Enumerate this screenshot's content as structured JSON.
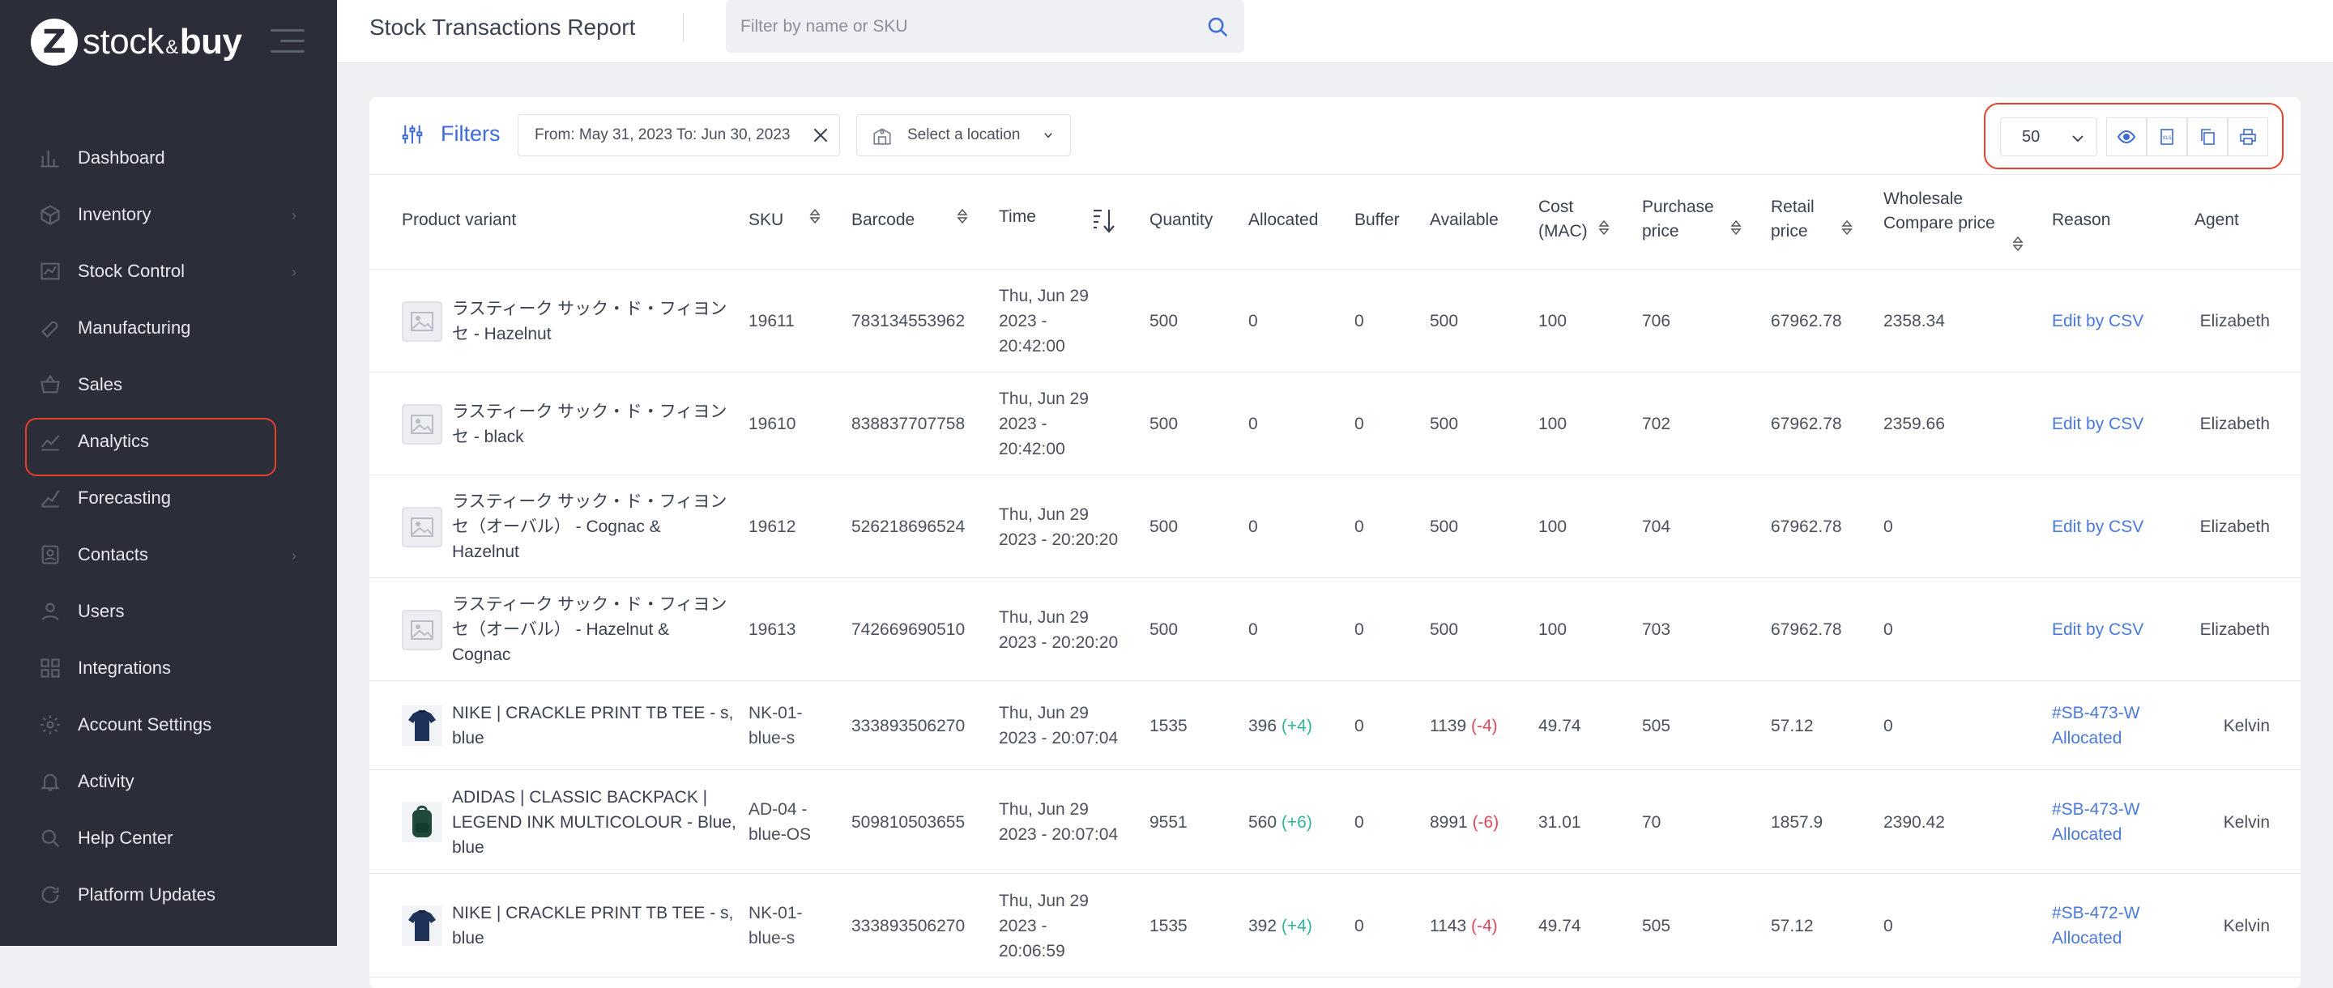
{
  "brand": {
    "mark": "Z",
    "name_left": "stock",
    "name_amp": "&",
    "name_right": "buy"
  },
  "nav": [
    {
      "label": "Dashboard",
      "icon": "bar-chart-icon",
      "chevron": false
    },
    {
      "label": "Inventory",
      "icon": "box-icon",
      "chevron": true
    },
    {
      "label": "Stock Control",
      "icon": "stock-control-icon",
      "chevron": true
    },
    {
      "label": "Manufacturing",
      "icon": "tools-icon",
      "chevron": false
    },
    {
      "label": "Sales",
      "icon": "basket-icon",
      "chevron": false
    },
    {
      "label": "Analytics",
      "icon": "analytics-icon",
      "chevron": false
    },
    {
      "label": "Forecasting",
      "icon": "forecast-icon",
      "chevron": false
    },
    {
      "label": "Contacts",
      "icon": "contacts-icon",
      "chevron": true
    },
    {
      "label": "Users",
      "icon": "users-icon",
      "chevron": false
    },
    {
      "label": "Integrations",
      "icon": "integrations-icon",
      "chevron": false
    },
    {
      "label": "Account Settings",
      "icon": "gear-icon",
      "chevron": false
    },
    {
      "label": "Activity",
      "icon": "bell-icon",
      "chevron": false
    },
    {
      "label": "Help Center",
      "icon": "search-icon",
      "chevron": false
    },
    {
      "label": "Platform Updates",
      "icon": "refresh-icon",
      "chevron": false
    }
  ],
  "header": {
    "title": "Stock Transactions Report",
    "search_placeholder": "Filter by name or SKU"
  },
  "filters": {
    "label": "Filters",
    "date_range": "From: May 31, 2023 To: Jun 30, 2023",
    "location_placeholder": "Select a location",
    "per_page": "50"
  },
  "columns": {
    "product": "Product variant",
    "sku": "SKU",
    "barcode": "Barcode",
    "time": "Time",
    "quantity": "Quantity",
    "allocated": "Allocated",
    "buffer": "Buffer",
    "available": "Available",
    "cost_1": "Cost",
    "cost_2": "(MAC)",
    "purchase_1": "Purchase",
    "purchase_2": "price",
    "retail_1": "Retail",
    "retail_2": "price",
    "wholesale_1": "Wholesale",
    "wholesale_2": "Compare price",
    "reason": "Reason",
    "agent": "Agent"
  },
  "rows": [
    {
      "name1": "ラスティーク サック・ド・フィヨン",
      "name2": "セ - Hazelnut",
      "name3": "",
      "sku1": "19611",
      "sku2": "",
      "sku3": "",
      "barcode": "783134553962",
      "time1": "Thu, Jun 29",
      "time2": "2023 -",
      "time3": "20:42:00",
      "quantity": "500",
      "allocated": "0",
      "allocated_delta": "",
      "buffer": "0",
      "available": "500",
      "available_delta": "",
      "cost": "100",
      "purchase": "706",
      "retail": "67962.78",
      "wholesale": "2358.34",
      "reason1": "Edit by CSV",
      "reason2": "",
      "agent": "Elizabeth",
      "thumb": "placeholder"
    },
    {
      "name1": "ラスティーク サック・ド・フィヨン",
      "name2": "セ - black",
      "name3": "",
      "sku1": "19610",
      "sku2": "",
      "sku3": "",
      "barcode": "838837707758",
      "time1": "Thu, Jun 29",
      "time2": "2023 -",
      "time3": "20:42:00",
      "quantity": "500",
      "allocated": "0",
      "allocated_delta": "",
      "buffer": "0",
      "available": "500",
      "available_delta": "",
      "cost": "100",
      "purchase": "702",
      "retail": "67962.78",
      "wholesale": "2359.66",
      "reason1": "Edit by CSV",
      "reason2": "",
      "agent": "Elizabeth",
      "thumb": "placeholder"
    },
    {
      "name1": "ラスティーク サック・ド・フィヨン",
      "name2": "セ（オーバル） - Cognac &",
      "name3": "Hazelnut",
      "sku1": "19612",
      "sku2": "",
      "sku3": "",
      "barcode": "526218696524",
      "time1": "Thu, Jun 29",
      "time2": "2023 - 20:20:20",
      "time3": "",
      "quantity": "500",
      "allocated": "0",
      "allocated_delta": "",
      "buffer": "0",
      "available": "500",
      "available_delta": "",
      "cost": "100",
      "purchase": "704",
      "retail": "67962.78",
      "wholesale": "0",
      "reason1": "Edit by CSV",
      "reason2": "",
      "agent": "Elizabeth",
      "thumb": "placeholder"
    },
    {
      "name1": "ラスティーク サック・ド・フィヨン",
      "name2": "セ（オーバル） - Hazelnut &",
      "name3": "Cognac",
      "sku1": "19613",
      "sku2": "",
      "sku3": "",
      "barcode": "742669690510",
      "time1": "Thu, Jun 29",
      "time2": "2023 - 20:20:20",
      "time3": "",
      "quantity": "500",
      "allocated": "0",
      "allocated_delta": "",
      "buffer": "0",
      "available": "500",
      "available_delta": "",
      "cost": "100",
      "purchase": "703",
      "retail": "67962.78",
      "wholesale": "0",
      "reason1": "Edit by CSV",
      "reason2": "",
      "agent": "Elizabeth",
      "thumb": "placeholder"
    },
    {
      "name1": "NIKE | CRACKLE PRINT TB TEE - s,",
      "name2": "blue",
      "name3": "",
      "sku1": "NK-01-",
      "sku2": "blue-s",
      "sku3": "",
      "barcode": "333893506270",
      "time1": "Thu, Jun 29",
      "time2": "2023 - 20:07:04",
      "time3": "",
      "quantity": "1535",
      "allocated": "396",
      "allocated_delta": "(+4)",
      "buffer": "0",
      "available": "1139",
      "available_delta": "(-4)",
      "cost": "49.74",
      "purchase": "505",
      "retail": "57.12",
      "wholesale": "0",
      "reason1": "#SB-473-W",
      "reason2": "Allocated",
      "agent": "Kelvin",
      "thumb": "tshirt"
    },
    {
      "name1": "ADIDAS | CLASSIC BACKPACK |",
      "name2": "LEGEND INK MULTICOLOUR - Blue,",
      "name3": "blue",
      "sku1": "AD-04 -",
      "sku2": "blue-OS",
      "sku3": "",
      "barcode": "509810503655",
      "time1": "Thu, Jun 29",
      "time2": "2023 - 20:07:04",
      "time3": "",
      "quantity": "9551",
      "allocated": "560",
      "allocated_delta": "(+6)",
      "buffer": "0",
      "available": "8991",
      "available_delta": "(-6)",
      "cost": "31.01",
      "purchase": "70",
      "retail": "1857.9",
      "wholesale": "2390.42",
      "reason1": "#SB-473-W",
      "reason2": "Allocated",
      "agent": "Kelvin",
      "thumb": "backpack"
    },
    {
      "name1": "NIKE | CRACKLE PRINT TB TEE - s,",
      "name2": "blue",
      "name3": "",
      "sku1": "NK-01-",
      "sku2": "blue-s",
      "sku3": "",
      "barcode": "333893506270",
      "time1": "Thu, Jun 29",
      "time2": "2023 -",
      "time3": "20:06:59",
      "quantity": "1535",
      "allocated": "392",
      "allocated_delta": "(+4)",
      "buffer": "0",
      "available": "1143",
      "available_delta": "(-4)",
      "cost": "49.74",
      "purchase": "505",
      "retail": "57.12",
      "wholesale": "0",
      "reason1": "#SB-472-W",
      "reason2": "Allocated",
      "agent": "Kelvin",
      "thumb": "tshirt"
    }
  ]
}
